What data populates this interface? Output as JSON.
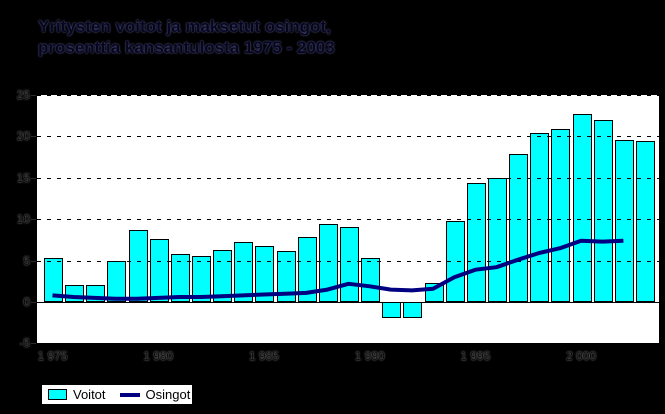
{
  "title": {
    "line1": "Yritysten voitot ja maksetut osingot,",
    "line2": "prosenttia kansantulosta 1975 - 2003"
  },
  "legend": {
    "items": [
      {
        "label": "Voitot",
        "swatch": "bar",
        "color": "#00ffff"
      },
      {
        "label": "Osingot",
        "swatch": "line",
        "color": "#000080"
      }
    ]
  },
  "colors": {
    "background": "#000000",
    "plot_background": "#ffffff",
    "bar_fill": "#00ffff",
    "bar_border": "#000000",
    "line_color": "#000080",
    "grid_color": "#000000"
  },
  "chart_data": {
    "type": "bar",
    "title": "Yritysten voitot ja maksetut osingot, prosenttia kansantulosta 1975 - 2003",
    "xlabel": "",
    "ylabel": "",
    "ylim": [
      -5,
      25
    ],
    "ytick_labels": [
      "25",
      "20",
      "15",
      "10",
      "5",
      "0",
      "-5"
    ],
    "yticks": [
      25,
      20,
      15,
      10,
      5,
      0,
      -5
    ],
    "xtick_labels": [
      "1 975",
      "1 980",
      "1 985",
      "1 990",
      "1 995",
      "2 000"
    ],
    "xtick_years": [
      1975,
      1980,
      1985,
      1990,
      1995,
      2000
    ],
    "grid": "horizontal-dashed",
    "legend_position": "bottom-left",
    "categories": [
      1975,
      1976,
      1977,
      1978,
      1979,
      1980,
      1981,
      1982,
      1983,
      1984,
      1985,
      1986,
      1987,
      1988,
      1989,
      1990,
      1991,
      1992,
      1993,
      1994,
      1995,
      1996,
      1997,
      1998,
      1999,
      2000,
      2001,
      2002,
      2003
    ],
    "series": [
      {
        "name": "Voitot",
        "type": "bar",
        "color": "#00ffff",
        "values": [
          5.3,
          2.0,
          2.0,
          5.0,
          8.7,
          7.6,
          5.8,
          5.6,
          6.3,
          7.2,
          6.8,
          6.2,
          7.8,
          9.4,
          9.1,
          5.3,
          -1.9,
          -1.9,
          2.3,
          9.8,
          14.4,
          15.0,
          17.9,
          20.4,
          20.9,
          22.7,
          22.0,
          19.6,
          19.4
        ]
      },
      {
        "name": "Osingot",
        "type": "line",
        "color": "#000080",
        "values": [
          0.8,
          0.6,
          0.5,
          0.4,
          0.4,
          0.5,
          0.6,
          0.6,
          0.7,
          0.8,
          0.9,
          1.0,
          1.1,
          1.5,
          2.2,
          1.9,
          1.5,
          1.4,
          1.6,
          3.0,
          3.9,
          4.2,
          5.1,
          5.9,
          6.5,
          7.4,
          7.3,
          7.4,
          null
        ]
      }
    ]
  }
}
